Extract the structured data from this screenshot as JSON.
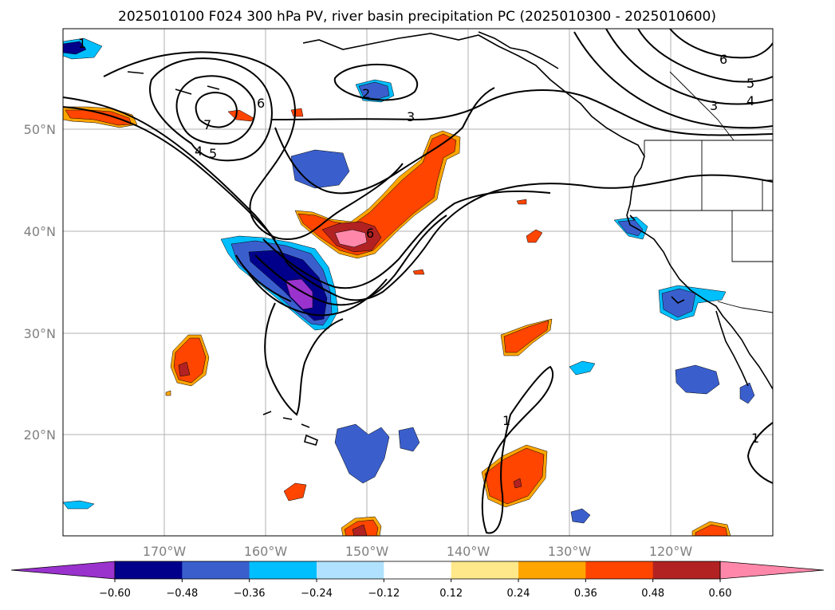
{
  "title": "2025010100 F024 300 hPa PV, river basin precipitation PC (2025010300 - 2025010600)",
  "lat_ticks": [
    "50°N",
    "40°N",
    "30°N",
    "20°N"
  ],
  "lon_ticks": [
    "170°W",
    "160°W",
    "150°W",
    "140°W",
    "130°W",
    "120°W"
  ],
  "colorbar": {
    "levels": [
      "−0.60",
      "−0.48",
      "−0.36",
      "−0.24",
      "−0.12",
      "0.12",
      "0.24",
      "0.36",
      "0.48",
      "0.60"
    ],
    "colors": [
      "#9a32cd",
      "#00008b",
      "#3a5fcd",
      "#00bfff",
      "#b0e2ff",
      "#ffffff",
      "#ffe88a",
      "#ffa500",
      "#ff4500",
      "#b22222",
      "#ff88aa"
    ]
  },
  "contour_labels": [
    "1",
    "2",
    "3",
    "4",
    "5",
    "6",
    "7",
    "4",
    "5",
    "6",
    "3",
    "4",
    "5",
    "6",
    "6",
    "1",
    "1"
  ],
  "colors": {
    "strong_negative": "#9a32cd",
    "negative_dark": "#00008b",
    "negative_mid": "#3a5fcd",
    "negative_light": "#00bfff",
    "positive_light": "#ffe88a",
    "positive_mid": "#ffa500",
    "positive_strong": "#ff4500",
    "positive_dark": "#b22222",
    "positive_max": "#ff88aa"
  }
}
